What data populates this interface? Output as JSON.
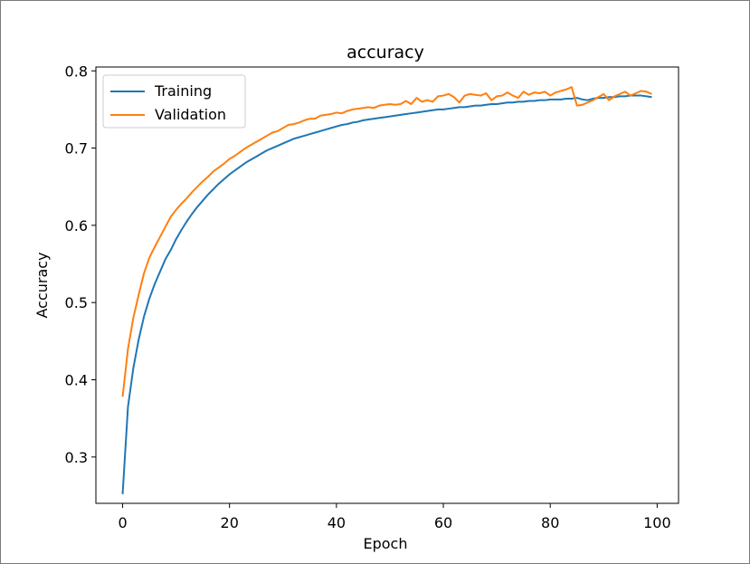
{
  "chart_data": {
    "type": "line",
    "title": "accuracy",
    "xlabel": "Epoch",
    "ylabel": "Accuracy",
    "xlim": [
      -5,
      104
    ],
    "ylim": [
      0.24,
      0.805
    ],
    "xticks": [
      0,
      20,
      40,
      60,
      80,
      100
    ],
    "yticks": [
      0.3,
      0.4,
      0.5,
      0.6,
      0.7,
      0.8
    ],
    "xtick_labels": [
      "0",
      "20",
      "40",
      "60",
      "80",
      "100"
    ],
    "ytick_labels": [
      "0.3",
      "0.4",
      "0.5",
      "0.6",
      "0.7",
      "0.8"
    ],
    "legend_position": "top-left",
    "grid": false,
    "series": [
      {
        "name": "Training",
        "color": "#1f77b4",
        "x": [
          0,
          1,
          2,
          3,
          4,
          5,
          6,
          7,
          8,
          9,
          10,
          11,
          12,
          13,
          14,
          15,
          16,
          17,
          18,
          19,
          20,
          21,
          22,
          23,
          24,
          25,
          26,
          27,
          28,
          29,
          30,
          31,
          32,
          33,
          34,
          35,
          36,
          37,
          38,
          39,
          40,
          41,
          42,
          43,
          44,
          45,
          46,
          47,
          48,
          49,
          50,
          51,
          52,
          53,
          54,
          55,
          56,
          57,
          58,
          59,
          60,
          61,
          62,
          63,
          64,
          65,
          66,
          67,
          68,
          69,
          70,
          71,
          72,
          73,
          74,
          75,
          76,
          77,
          78,
          79,
          80,
          81,
          82,
          83,
          84,
          85,
          86,
          87,
          88,
          89,
          90,
          91,
          92,
          93,
          94,
          95,
          96,
          97,
          98,
          99
        ],
        "values": [
          0.252,
          0.365,
          0.415,
          0.452,
          0.482,
          0.505,
          0.524,
          0.54,
          0.556,
          0.568,
          0.582,
          0.594,
          0.605,
          0.615,
          0.624,
          0.632,
          0.64,
          0.647,
          0.654,
          0.66,
          0.666,
          0.671,
          0.676,
          0.681,
          0.685,
          0.689,
          0.693,
          0.697,
          0.7,
          0.703,
          0.706,
          0.709,
          0.712,
          0.714,
          0.716,
          0.718,
          0.72,
          0.722,
          0.724,
          0.726,
          0.728,
          0.73,
          0.731,
          0.733,
          0.734,
          0.736,
          0.737,
          0.738,
          0.739,
          0.74,
          0.741,
          0.742,
          0.743,
          0.744,
          0.745,
          0.746,
          0.747,
          0.748,
          0.749,
          0.75,
          0.75,
          0.751,
          0.752,
          0.753,
          0.753,
          0.754,
          0.755,
          0.755,
          0.756,
          0.757,
          0.757,
          0.758,
          0.759,
          0.759,
          0.76,
          0.76,
          0.761,
          0.761,
          0.762,
          0.762,
          0.763,
          0.763,
          0.763,
          0.764,
          0.764,
          0.765,
          0.763,
          0.762,
          0.764,
          0.765,
          0.765,
          0.766,
          0.766,
          0.767,
          0.767,
          0.768,
          0.768,
          0.768,
          0.767,
          0.766
        ]
      },
      {
        "name": "Validation",
        "color": "#ff7f0e",
        "x": [
          0,
          1,
          2,
          3,
          4,
          5,
          6,
          7,
          8,
          9,
          10,
          11,
          12,
          13,
          14,
          15,
          16,
          17,
          18,
          19,
          20,
          21,
          22,
          23,
          24,
          25,
          26,
          27,
          28,
          29,
          30,
          31,
          32,
          33,
          34,
          35,
          36,
          37,
          38,
          39,
          40,
          41,
          42,
          43,
          44,
          45,
          46,
          47,
          48,
          49,
          50,
          51,
          52,
          53,
          54,
          55,
          56,
          57,
          58,
          59,
          60,
          61,
          62,
          63,
          64,
          65,
          66,
          67,
          68,
          69,
          70,
          71,
          72,
          73,
          74,
          75,
          76,
          77,
          78,
          79,
          80,
          81,
          82,
          83,
          84,
          85,
          86,
          87,
          88,
          89,
          90,
          91,
          92,
          93,
          94,
          95,
          96,
          97,
          98,
          99
        ],
        "values": [
          0.378,
          0.44,
          0.48,
          0.51,
          0.538,
          0.558,
          0.572,
          0.585,
          0.598,
          0.611,
          0.62,
          0.628,
          0.635,
          0.643,
          0.65,
          0.657,
          0.663,
          0.67,
          0.675,
          0.68,
          0.686,
          0.69,
          0.695,
          0.7,
          0.704,
          0.708,
          0.712,
          0.716,
          0.72,
          0.722,
          0.726,
          0.73,
          0.731,
          0.733,
          0.736,
          0.738,
          0.738,
          0.742,
          0.743,
          0.744,
          0.746,
          0.745,
          0.748,
          0.75,
          0.751,
          0.752,
          0.753,
          0.752,
          0.755,
          0.756,
          0.757,
          0.756,
          0.757,
          0.761,
          0.757,
          0.765,
          0.76,
          0.762,
          0.76,
          0.767,
          0.768,
          0.77,
          0.766,
          0.759,
          0.768,
          0.77,
          0.769,
          0.768,
          0.771,
          0.762,
          0.767,
          0.768,
          0.772,
          0.768,
          0.765,
          0.773,
          0.769,
          0.772,
          0.771,
          0.773,
          0.768,
          0.772,
          0.774,
          0.776,
          0.779,
          0.755,
          0.756,
          0.759,
          0.762,
          0.766,
          0.77,
          0.762,
          0.767,
          0.77,
          0.773,
          0.768,
          0.771,
          0.774,
          0.773,
          0.77
        ]
      }
    ]
  }
}
